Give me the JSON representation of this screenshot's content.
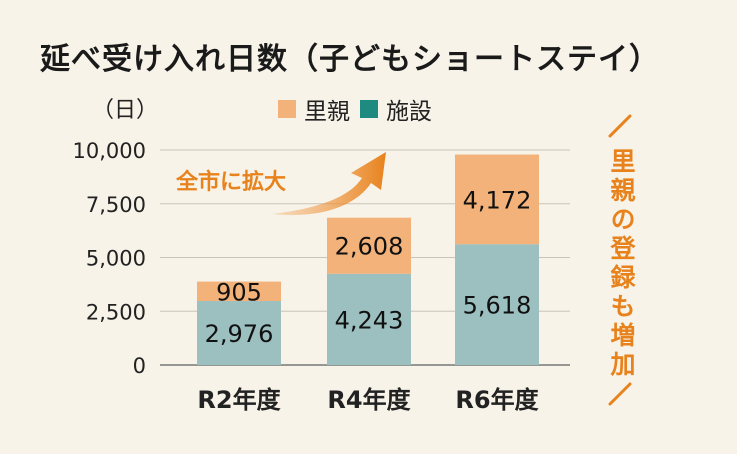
{
  "title": "延べ受け入れ日数（子どもショートステイ）",
  "unit_label": "（日）",
  "legend": [
    {
      "name": "里親",
      "color": "#f2b27a"
    },
    {
      "name": "施設",
      "color": "#1f8a80"
    }
  ],
  "annotation_expand": "全市に拡大",
  "annotation_side": "里親の登録も増加",
  "colors": {
    "foster": "#f2b27a",
    "facility": "#9cbfbf",
    "facility_legend": "#1f8a80",
    "accent": "#e8821c"
  },
  "chart_data": {
    "type": "bar",
    "stacked": true,
    "categories": [
      "R2年度",
      "R4年度",
      "R6年度"
    ],
    "series": [
      {
        "name": "施設",
        "values": [
          2976,
          4243,
          5618
        ],
        "labels": [
          "2,976",
          "4,243",
          "5,618"
        ]
      },
      {
        "name": "里親",
        "values": [
          905,
          2608,
          4172
        ],
        "labels": [
          "905",
          "2,608",
          "4,172"
        ]
      }
    ],
    "yticks": [
      0,
      2500,
      5000,
      7500,
      10000
    ],
    "ytick_labels": [
      "0",
      "2,500",
      "5,000",
      "7,500",
      "10,000"
    ],
    "ylim": [
      0,
      10000
    ],
    "grid": true,
    "legend_position": "top"
  }
}
